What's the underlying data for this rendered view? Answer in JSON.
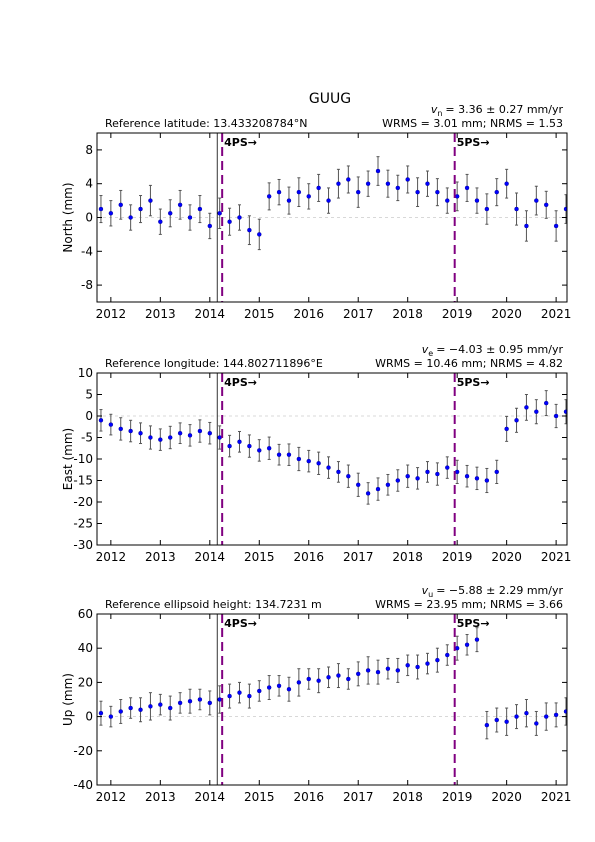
{
  "title": "GUUG",
  "chart_data": [
    {
      "type": "scatter",
      "ylabel": "North (mm)",
      "velocity_symbol": "v",
      "velocity_subscript": "n",
      "velocity_text": "= 3.36 ± 0.27 mm/yr",
      "reference": "Reference latitude: 13.433208784°N",
      "stats": "WRMS = 3.01 mm; NRMS = 1.53",
      "color": "#0000ff",
      "error_color": "#555555",
      "x": [
        2011.8,
        2012.0,
        2012.2,
        2012.4,
        2012.6,
        2012.8,
        2013.0,
        2013.2,
        2013.4,
        2013.6,
        2013.8,
        2014.0,
        2014.2,
        2014.4,
        2014.6,
        2014.8,
        2015.0,
        2015.2,
        2015.4,
        2015.6,
        2015.8,
        2016.0,
        2016.2,
        2016.4,
        2016.6,
        2016.8,
        2017.0,
        2017.2,
        2017.4,
        2017.6,
        2017.8,
        2018.0,
        2018.2,
        2018.4,
        2018.6,
        2018.8,
        2019.0,
        2019.2,
        2019.4,
        2019.6,
        2019.8,
        2020.0,
        2020.2,
        2020.4,
        2020.6,
        2020.8,
        2021.0,
        2021.2
      ],
      "values": [
        1,
        0.5,
        1.5,
        0,
        1,
        2,
        -0.5,
        0.5,
        1.5,
        0,
        1,
        -1,
        0.5,
        -0.5,
        0,
        -1.5,
        -2,
        2.5,
        3,
        2,
        3,
        2.5,
        3.5,
        2,
        4,
        4.5,
        3,
        4,
        5.5,
        4,
        3.5,
        4.5,
        3,
        4,
        3,
        2,
        2.5,
        3.5,
        2,
        1,
        3,
        4,
        1,
        -1,
        2,
        1.5,
        -1,
        1
      ],
      "errors": [
        1.6,
        1.5,
        1.7,
        1.5,
        1.6,
        1.8,
        1.5,
        1.6,
        1.7,
        1.5,
        1.6,
        1.5,
        1.8,
        1.6,
        1.5,
        1.7,
        1.8,
        1.6,
        1.5,
        1.6,
        1.7,
        1.5,
        1.6,
        1.5,
        1.7,
        1.6,
        1.8,
        1.5,
        1.7,
        1.6,
        1.5,
        1.6,
        1.7,
        1.5,
        1.6,
        1.5,
        1.7,
        1.6,
        1.5,
        1.8,
        1.6,
        1.7,
        1.9,
        1.8,
        1.7,
        1.6,
        1.8,
        1.7
      ],
      "xlim": [
        2011.72,
        2021.22
      ],
      "xticks": [
        2012,
        2013,
        2014,
        2015,
        2016,
        2017,
        2018,
        2019,
        2020,
        2021
      ],
      "ylim": [
        -10,
        10
      ],
      "yticks": [
        -8,
        -4,
        0,
        4,
        8
      ],
      "hline": 0,
      "vlines": [
        2014.15
      ],
      "events": [
        {
          "x": 2014.25,
          "label": "4PS→"
        },
        {
          "x": 2018.95,
          "label": "5PS→"
        }
      ]
    },
    {
      "type": "scatter",
      "ylabel": "East (mm)",
      "velocity_symbol": "v",
      "velocity_subscript": "e",
      "velocity_text": "= −4.03 ± 0.95 mm/yr",
      "reference": "Reference longitude: 144.802711896°E",
      "stats": "WRMS = 10.46 mm; NRMS = 4.82",
      "color": "#0000ff",
      "error_color": "#555555",
      "x": [
        2011.8,
        2012.0,
        2012.2,
        2012.4,
        2012.6,
        2012.8,
        2013.0,
        2013.2,
        2013.4,
        2013.6,
        2013.8,
        2014.0,
        2014.2,
        2014.4,
        2014.6,
        2014.8,
        2015.0,
        2015.2,
        2015.4,
        2015.6,
        2015.8,
        2016.0,
        2016.2,
        2016.4,
        2016.6,
        2016.8,
        2017.0,
        2017.2,
        2017.4,
        2017.6,
        2017.8,
        2018.0,
        2018.2,
        2018.4,
        2018.6,
        2018.8,
        2019.0,
        2019.2,
        2019.4,
        2019.6,
        2019.8,
        2020.0,
        2020.2,
        2020.4,
        2020.6,
        2020.8,
        2021.0,
        2021.2
      ],
      "values": [
        -1,
        -2,
        -3,
        -3.5,
        -4,
        -5,
        -5.5,
        -5,
        -4,
        -4.5,
        -3.5,
        -4,
        -5,
        -7,
        -6,
        -7,
        -8,
        -7.5,
        -9,
        -9,
        -10,
        -10.5,
        -11,
        -12,
        -13,
        -14,
        -16,
        -18,
        -17,
        -16,
        -15,
        -14,
        -14.5,
        -13,
        -13.5,
        -12,
        -13,
        -14,
        -14.5,
        -15,
        -13,
        -3,
        -1,
        2,
        1,
        3,
        0,
        1
      ],
      "errors": [
        2.5,
        2.4,
        2.6,
        2.5,
        2.4,
        2.7,
        2.5,
        2.6,
        2.4,
        2.5,
        2.6,
        2.5,
        2.7,
        2.5,
        2.4,
        2.6,
        2.5,
        2.6,
        2.4,
        2.5,
        2.7,
        2.5,
        2.6,
        2.5,
        2.4,
        2.6,
        2.7,
        2.5,
        2.6,
        2.4,
        2.5,
        2.6,
        2.5,
        2.4,
        2.6,
        2.5,
        2.7,
        2.5,
        2.6,
        2.8,
        2.7,
        2.9,
        2.8,
        3.0,
        2.8,
        2.9,
        2.7,
        2.8
      ],
      "xlim": [
        2011.72,
        2021.22
      ],
      "xticks": [
        2012,
        2013,
        2014,
        2015,
        2016,
        2017,
        2018,
        2019,
        2020,
        2021
      ],
      "ylim": [
        -30,
        10
      ],
      "yticks": [
        -30,
        -25,
        -20,
        -15,
        -10,
        -5,
        0,
        5,
        10
      ],
      "hline": 0,
      "vlines": [
        2014.15
      ],
      "events": [
        {
          "x": 2014.25,
          "label": "4PS→"
        },
        {
          "x": 2018.95,
          "label": "5PS→"
        }
      ]
    },
    {
      "type": "scatter",
      "ylabel": "Up (mm)",
      "velocity_symbol": "v",
      "velocity_subscript": "u",
      "velocity_text": "= −5.88 ± 2.29 mm/yr",
      "reference": "Reference ellipsoid height: 134.7231 m",
      "stats": "WRMS = 23.95 mm; NRMS = 3.66",
      "color": "#0000ff",
      "error_color": "#555555",
      "x": [
        2011.8,
        2012.0,
        2012.2,
        2012.4,
        2012.6,
        2012.8,
        2013.0,
        2013.2,
        2013.4,
        2013.6,
        2013.8,
        2014.0,
        2014.2,
        2014.4,
        2014.6,
        2014.8,
        2015.0,
        2015.2,
        2015.4,
        2015.6,
        2015.8,
        2016.0,
        2016.2,
        2016.4,
        2016.6,
        2016.8,
        2017.0,
        2017.2,
        2017.4,
        2017.6,
        2017.8,
        2018.0,
        2018.2,
        2018.4,
        2018.6,
        2018.8,
        2019.0,
        2019.2,
        2019.4,
        2019.6,
        2019.8,
        2020.0,
        2020.2,
        2020.4,
        2020.6,
        2020.8,
        2021.0,
        2021.2
      ],
      "values": [
        2,
        0,
        3,
        5,
        4,
        6,
        7,
        5,
        8,
        9,
        10,
        8,
        10,
        12,
        14,
        12,
        15,
        17,
        18,
        16,
        20,
        22,
        21,
        23,
        24,
        22,
        25,
        27,
        26,
        28,
        27,
        30,
        29,
        31,
        33,
        36,
        40,
        42,
        45,
        -5,
        -2,
        -3,
        0,
        2,
        -4,
        0,
        1,
        3
      ],
      "errors": [
        7,
        6,
        7,
        6,
        7,
        8,
        6,
        7,
        6,
        7,
        6,
        7,
        8,
        7,
        6,
        7,
        6,
        7,
        6,
        7,
        8,
        6,
        7,
        6,
        7,
        6,
        7,
        8,
        7,
        6,
        7,
        6,
        7,
        6,
        7,
        6,
        7,
        6,
        7,
        8,
        7,
        8,
        7,
        8,
        7,
        8,
        7,
        8
      ],
      "xlim": [
        2011.72,
        2021.22
      ],
      "xticks": [
        2012,
        2013,
        2014,
        2015,
        2016,
        2017,
        2018,
        2019,
        2020,
        2021
      ],
      "ylim": [
        -40,
        60
      ],
      "yticks": [
        -40,
        -20,
        0,
        20,
        40,
        60
      ],
      "hline": 0,
      "vlines": [
        2014.15
      ],
      "events": [
        {
          "x": 2014.25,
          "label": "4PS→"
        },
        {
          "x": 2018.95,
          "label": "5PS→"
        }
      ]
    }
  ]
}
